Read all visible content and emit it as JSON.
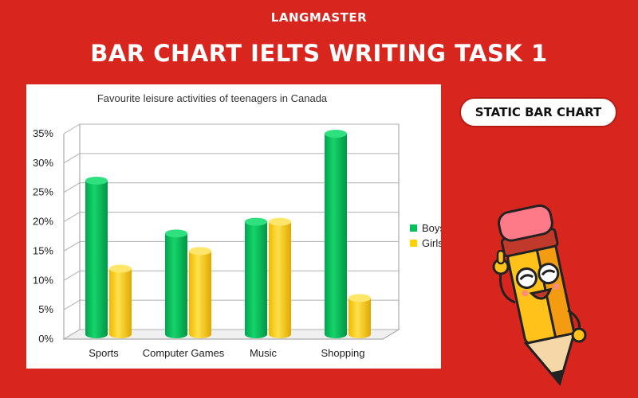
{
  "header": {
    "brand": "LANGMASTER",
    "title": "BAR CHART IELTS WRITING TASK 1"
  },
  "badge": {
    "label": "STATIC BAR CHART"
  },
  "mascot": {
    "icon": "pencil-mascot-icon"
  },
  "colors": {
    "background": "#d8261f",
    "boys": "#00c05a",
    "girls": "#ffd200"
  },
  "chart_data": {
    "type": "bar",
    "title": "Favourite leisure activities of teenagers in Canada",
    "xlabel": "",
    "ylabel": "",
    "categories": [
      "Sports",
      "Computer Games",
      "Music",
      "Shopping"
    ],
    "series": [
      {
        "name": "Boys",
        "values": [
          27,
          18,
          20,
          35
        ],
        "color": "#00c05a"
      },
      {
        "name": "Girls",
        "values": [
          12,
          15,
          20,
          7
        ],
        "color": "#ffd200"
      }
    ],
    "ylim": [
      0,
      35
    ],
    "yticks": [
      "0%",
      "5%",
      "10%",
      "15%",
      "20%",
      "25%",
      "30%",
      "35%"
    ],
    "grid": true,
    "legend": "right",
    "style": "3d-cylinder"
  }
}
